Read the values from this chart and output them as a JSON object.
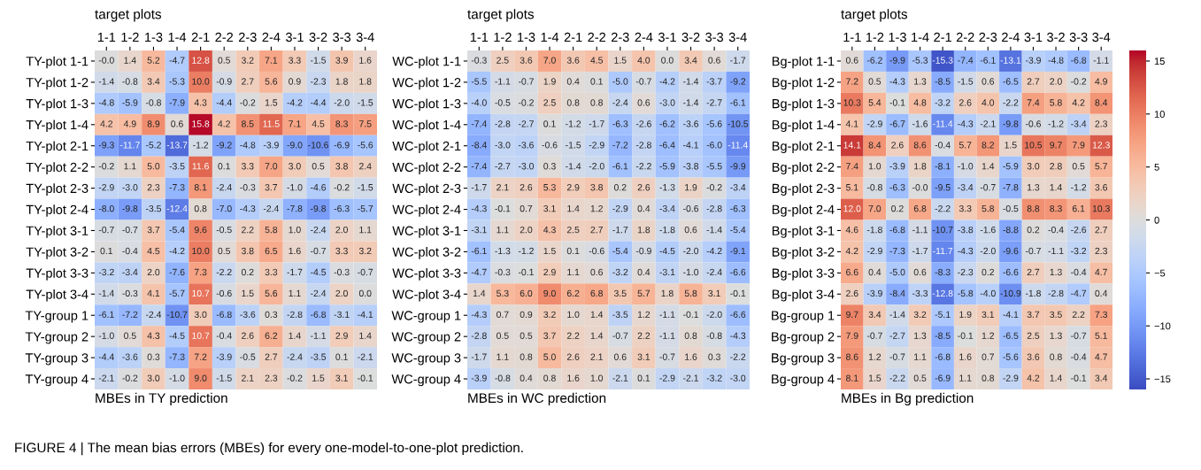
{
  "chart_data": [
    {
      "type": "heatmap",
      "xlabel": "target plots",
      "title": "MBEs in TY prediction",
      "categories": [
        "1-1",
        "1-2",
        "1-3",
        "1-4",
        "2-1",
        "2-2",
        "2-3",
        "2-4",
        "3-1",
        "3-2",
        "3-3",
        "3-4"
      ],
      "y_categories": [
        "TY-plot 1-1",
        "TY-plot 1-2",
        "TY-plot 1-3",
        "TY-plot 1-4",
        "TY-plot 2-1",
        "TY-plot 2-2",
        "TY-plot 2-3",
        "TY-plot 2-4",
        "TY-plot 3-1",
        "TY-plot 3-2",
        "TY-plot 3-3",
        "TY-plot 3-4",
        "TY-group 1",
        "TY-group 2",
        "TY-group 3",
        "TY-group 4"
      ],
      "cells": [
        [
          -0.0,
          1.4,
          5.2,
          -4.7,
          12.8,
          0.5,
          3.2,
          7.1,
          3.3,
          -1.5,
          3.9,
          1.6
        ],
        [
          -1.4,
          -0.8,
          3.4,
          -5.3,
          10.0,
          -0.9,
          2.7,
          5.6,
          0.9,
          -2.3,
          1.8,
          1.8
        ],
        [
          -4.8,
          -5.9,
          -0.8,
          -7.9,
          4.3,
          -4.4,
          -0.2,
          1.5,
          -4.2,
          -4.4,
          -2.0,
          -1.5
        ],
        [
          4.2,
          4.9,
          8.9,
          0.6,
          15.8,
          4.2,
          8.5,
          11.5,
          7.1,
          4.5,
          8.3,
          7.5
        ],
        [
          -9.3,
          -11.7,
          -5.2,
          -13.7,
          -1.2,
          -9.2,
          -4.8,
          -3.9,
          -9.0,
          -10.6,
          -6.9,
          -5.6
        ],
        [
          -0.2,
          1.1,
          5.0,
          -3.5,
          11.6,
          0.1,
          3.3,
          7.0,
          3.0,
          0.5,
          3.8,
          2.4
        ],
        [
          -2.9,
          -3.0,
          2.3,
          -7.3,
          8.1,
          -2.4,
          -0.3,
          3.7,
          -1.0,
          -4.6,
          -0.2,
          -1.5
        ],
        [
          -8.0,
          -9.8,
          -3.5,
          -12.4,
          0.8,
          -7.0,
          -4.3,
          -2.4,
          -7.8,
          -9.8,
          -6.3,
          -5.7
        ],
        [
          -0.7,
          -0.7,
          3.7,
          -5.4,
          9.6,
          -0.5,
          2.2,
          5.8,
          1.0,
          -2.4,
          2.0,
          1.1
        ],
        [
          0.1,
          -0.4,
          4.5,
          -4.2,
          10.0,
          0.5,
          3.8,
          6.5,
          1.6,
          -0.7,
          3.3,
          3.2
        ],
        [
          -3.2,
          -3.4,
          2.0,
          -7.6,
          7.3,
          -2.2,
          0.2,
          3.3,
          -1.7,
          -4.5,
          -0.3,
          -0.7
        ],
        [
          -1.4,
          -0.3,
          4.1,
          -5.7,
          10.7,
          -0.6,
          1.5,
          5.6,
          1.1,
          -2.4,
          2.0,
          0.0
        ],
        [
          -6.1,
          -7.2,
          -2.4,
          -10.7,
          3.0,
          -6.8,
          -3.6,
          0.3,
          -2.8,
          -6.8,
          -3.1,
          -4.1
        ],
        [
          -1.0,
          0.5,
          4.3,
          -4.5,
          10.7,
          -0.4,
          2.6,
          6.2,
          1.4,
          -1.1,
          2.9,
          1.4
        ],
        [
          -4.4,
          -3.6,
          0.3,
          -7.3,
          7.2,
          -3.9,
          -0.5,
          2.7,
          -2.4,
          -3.5,
          0.1,
          -2.1
        ],
        [
          -2.1,
          -0.2,
          3.0,
          -1.0,
          9.0,
          -1.5,
          2.1,
          2.3,
          -0.2,
          1.5,
          3.1,
          -0.1
        ]
      ],
      "cell_labels": [
        [
          "-0.0",
          "1.4",
          "5.2",
          "-4.7",
          "12.8",
          "0.5",
          "3.2",
          "7.1",
          "3.3",
          "-1.5",
          "3.9",
          "1.6"
        ],
        [
          "-1.4",
          "-0.8",
          "3.4",
          "-5.3",
          "10.0",
          "-0.9",
          "2.7",
          "5.6",
          "0.9",
          "-2.3",
          "1.8",
          "1.8"
        ],
        [
          "-4.8",
          "-5.9",
          "-0.8",
          "-7.9",
          "4.3",
          "-4.4",
          "-0.2",
          "1.5",
          "-4.2",
          "-4.4",
          "-2.0",
          "-1.5"
        ],
        [
          "4.2",
          "4.9",
          "8.9",
          "0.6",
          "15.8",
          "4.2",
          "8.5",
          "11.5",
          "7.1",
          "4.5",
          "8.3",
          "7.5"
        ],
        [
          "-9.3",
          "-11.7",
          "-5.2",
          "-13.7",
          "-1.2",
          "-9.2",
          "-4.8",
          "-3.9",
          "-9.0",
          "-10.6",
          "-6.9",
          "-5.6"
        ],
        [
          "-0.2",
          "1.1",
          "5.0",
          "-3.5",
          "11.6",
          "0.1",
          "3.3",
          "7.0",
          "3.0",
          "0.5",
          "3.8",
          "2.4"
        ],
        [
          "-2.9",
          "-3.0",
          "2.3",
          "-7.3",
          "8.1",
          "-2.4",
          "-0.3",
          "3.7",
          "-1.0",
          "-4.6",
          "-0.2",
          "-1.5"
        ],
        [
          "-8.0",
          "-9.8",
          "-3.5",
          "-12.4",
          "0.8",
          "-7.0",
          "-4.3",
          "-2.4",
          "-7.8",
          "-9.8",
          "-6.3",
          "-5.7"
        ],
        [
          "-0.7",
          "-0.7",
          "3.7",
          "-5.4",
          "9.6",
          "-0.5",
          "2.2",
          "5.8",
          "1.0",
          "-2.4",
          "2.0",
          "1.1"
        ],
        [
          "0.1",
          "-0.4",
          "4.5",
          "-4.2",
          "10.0",
          "0.5",
          "3.8",
          "6.5",
          "1.6",
          "-0.7",
          "3.3",
          "3.2"
        ],
        [
          "-3.2",
          "-3.4",
          "2.0",
          "-7.6",
          "7.3",
          "-2.2",
          "0.2",
          "3.3",
          "-1.7",
          "-4.5",
          "-0.3",
          "-0.7"
        ],
        [
          "-1.4",
          "-0.3",
          "4.1",
          "-5.7",
          "10.7",
          "-0.6",
          "1.5",
          "5.6",
          "1.1",
          "-2.4",
          "2.0",
          "0.0"
        ],
        [
          "-6.1",
          "-7.2",
          "-2.4",
          "-10.7",
          "3.0",
          "-6.8",
          "-3.6",
          "0.3",
          "-2.8",
          "-6.8",
          "-3.1",
          "-4.1"
        ],
        [
          "-1.0",
          "0.5",
          "4.3",
          "-4.5",
          "10.7",
          "-0.4",
          "2.6",
          "6.2",
          "1.4",
          "-1.1",
          "2.9",
          "1.4"
        ],
        [
          "-4.4",
          "-3.6",
          "0.3",
          "-7.3",
          "7.2",
          "-3.9",
          "-0.5",
          "2.7",
          "-2.4",
          "-3.5",
          "0.1",
          "-2.1"
        ],
        [
          "-2.1",
          "-0.2",
          "3.0",
          "-1.0",
          "9.0",
          "-1.5",
          "2.1",
          "2.3",
          "-0.2",
          "1.5",
          "3.1",
          "-0.1"
        ]
      ],
      "data_labels": true,
      "annotations": [
        "FIGURE 4 | The mean bias errors (MBEs) for every one-model-to-one-plot prediction."
      ]
    },
    {
      "type": "heatmap",
      "xlabel": "target plots",
      "title": "MBEs in WC prediction",
      "categories": [
        "1-1",
        "1-2",
        "1-3",
        "1-4",
        "2-1",
        "2-2",
        "2-3",
        "2-4",
        "3-1",
        "3-2",
        "3-3",
        "3-4"
      ],
      "y_categories": [
        "WC-plot 1-1",
        "WC-plot 1-2",
        "WC-plot 1-3",
        "WC-plot 1-4",
        "WC-plot 2-1",
        "WC-plot 2-2",
        "WC-plot 2-3",
        "WC-plot 2-4",
        "WC-plot 3-1",
        "WC-plot 3-2",
        "WC-plot 3-3",
        "WC-plot 3-4",
        "WC-group 1",
        "WC-group 2",
        "WC-group 3",
        "WC-group 4"
      ],
      "cells": [
        [
          -0.3,
          2.5,
          3.6,
          7.0,
          3.6,
          4.5,
          1.5,
          4.0,
          0.0,
          3.4,
          0.6,
          -1.7
        ],
        [
          -5.5,
          -1.1,
          -0.7,
          1.9,
          0.4,
          0.1,
          -5.0,
          -0.7,
          -4.2,
          -1.4,
          -3.7,
          -9.2
        ],
        [
          -4.0,
          -0.5,
          -0.2,
          2.5,
          0.8,
          0.8,
          -2.4,
          0.6,
          -3.0,
          -1.4,
          -2.7,
          -6.1
        ],
        [
          -7.4,
          -2.8,
          -2.7,
          0.1,
          -1.2,
          -1.7,
          -6.3,
          -2.6,
          -6.2,
          -3.6,
          -5.6,
          -10.5
        ],
        [
          -8.4,
          -3.0,
          -3.6,
          -0.6,
          -1.5,
          -2.9,
          -7.2,
          -2.8,
          -6.4,
          -4.1,
          -6.0,
          -11.4
        ],
        [
          -7.4,
          -2.7,
          -3.0,
          0.3,
          -1.4,
          -2.0,
          -6.1,
          -2.2,
          -5.9,
          -3.8,
          -5.5,
          -9.9
        ],
        [
          -1.7,
          2.1,
          2.6,
          5.3,
          2.9,
          3.8,
          0.2,
          2.6,
          -1.3,
          1.9,
          -0.2,
          -3.4
        ],
        [
          -4.3,
          -0.1,
          0.7,
          3.1,
          1.4,
          1.2,
          -2.9,
          0.4,
          -3.4,
          -0.6,
          -2.8,
          -6.3
        ],
        [
          -3.1,
          1.1,
          2.0,
          4.3,
          2.5,
          2.7,
          -1.7,
          1.8,
          -1.8,
          0.6,
          -1.4,
          -5.4
        ],
        [
          -6.1,
          -1.3,
          -1.2,
          1.5,
          0.1,
          -0.6,
          -5.4,
          -0.9,
          -4.5,
          -2.0,
          -4.2,
          -9.1
        ],
        [
          -4.7,
          -0.3,
          -0.1,
          2.9,
          1.1,
          0.6,
          -3.2,
          0.4,
          -3.1,
          -1.0,
          -2.4,
          -6.6
        ],
        [
          1.4,
          5.3,
          6.0,
          9.0,
          6.2,
          6.8,
          3.5,
          5.7,
          1.8,
          5.8,
          3.1,
          -0.1
        ],
        [
          -4.3,
          0.7,
          0.9,
          3.2,
          1.0,
          1.4,
          -3.5,
          1.2,
          -1.1,
          -0.1,
          -2.0,
          -6.6
        ],
        [
          -2.8,
          0.5,
          0.5,
          3.7,
          2.2,
          1.4,
          -0.7,
          2.2,
          -1.1,
          0.8,
          -0.8,
          -4.3
        ],
        [
          -1.7,
          1.1,
          0.8,
          5.0,
          2.6,
          2.1,
          0.6,
          3.1,
          -0.7,
          1.6,
          0.3,
          -2.2
        ],
        [
          -3.9,
          -0.8,
          0.4,
          0.8,
          1.6,
          1.0,
          -2.1,
          0.1,
          -2.9,
          -2.1,
          -3.2,
          -3.0
        ]
      ],
      "cell_labels": [
        [
          "-0.3",
          "2.5",
          "3.6",
          "7.0",
          "3.6",
          "4.5",
          "1.5",
          "4.0",
          "0.0",
          "3.4",
          "0.6",
          "-1.7"
        ],
        [
          "-5.5",
          "-1.1",
          "-0.7",
          "1.9",
          "0.4",
          "0.1",
          "-5.0",
          "-0.7",
          "-4.2",
          "-1.4",
          "-3.7",
          "-9.2"
        ],
        [
          "-4.0",
          "-0.5",
          "-0.2",
          "2.5",
          "0.8",
          "0.8",
          "-2.4",
          "0.6",
          "-3.0",
          "-1.4",
          "-2.7",
          "-6.1"
        ],
        [
          "-7.4",
          "-2.8",
          "-2.7",
          "0.1",
          "-1.2",
          "-1.7",
          "-6.3",
          "-2.6",
          "-6.2",
          "-3.6",
          "-5.6",
          "-10.5"
        ],
        [
          "-8.4",
          "-3.0",
          "-3.6",
          "-0.6",
          "-1.5",
          "-2.9",
          "-7.2",
          "-2.8",
          "-6.4",
          "-4.1",
          "-6.0",
          "-11.4"
        ],
        [
          "-7.4",
          "-2.7",
          "-3.0",
          "0.3",
          "-1.4",
          "-2.0",
          "-6.1",
          "-2.2",
          "-5.9",
          "-3.8",
          "-5.5",
          "-9.9"
        ],
        [
          "-1.7",
          "2.1",
          "2.6",
          "5.3",
          "2.9",
          "3.8",
          "0.2",
          "2.6",
          "-1.3",
          "1.9",
          "-0.2",
          "-3.4"
        ],
        [
          "-4.3",
          "-0.1",
          "0.7",
          "3.1",
          "1.4",
          "1.2",
          "-2.9",
          "0.4",
          "-3.4",
          "-0.6",
          "-2.8",
          "-6.3"
        ],
        [
          "-3.1",
          "1.1",
          "2.0",
          "4.3",
          "2.5",
          "2.7",
          "-1.7",
          "1.8",
          "-1.8",
          "0.6",
          "-1.4",
          "-5.4"
        ],
        [
          "-6.1",
          "-1.3",
          "-1.2",
          "1.5",
          "0.1",
          "-0.6",
          "-5.4",
          "-0.9",
          "-4.5",
          "-2.0",
          "-4.2",
          "-9.1"
        ],
        [
          "-4.7",
          "-0.3",
          "-0.1",
          "2.9",
          "1.1",
          "0.6",
          "-3.2",
          "0.4",
          "-3.1",
          "-1.0",
          "-2.4",
          "-6.6"
        ],
        [
          "1.4",
          "5.3",
          "6.0",
          "9.0",
          "6.2",
          "6.8",
          "3.5",
          "5.7",
          "1.8",
          "5.8",
          "3.1",
          "-0.1"
        ],
        [
          "-4.3",
          "0.7",
          "0.9",
          "3.2",
          "1.0",
          "1.4",
          "-3.5",
          "1.2",
          "-1.1",
          "-0.1",
          "-2.0",
          "-6.6"
        ],
        [
          "-2.8",
          "0.5",
          "0.5",
          "3.7",
          "2.2",
          "1.4",
          "-0.7",
          "2.2",
          "-1.1",
          "0.8",
          "-0.8",
          "-4.3"
        ],
        [
          "-1.7",
          "1.1",
          "0.8",
          "5.0",
          "2.6",
          "2.1",
          "0.6",
          "3.1",
          "-0.7",
          "1.6",
          "0.3",
          "-2.2"
        ],
        [
          "-3.9",
          "-0.8",
          "0.4",
          "0.8",
          "1.6",
          "1.0",
          "-2.1",
          "0.1",
          "-2.9",
          "-2.1",
          "-3.2",
          "-3.0"
        ]
      ],
      "data_labels": true
    },
    {
      "type": "heatmap",
      "xlabel": "target plots",
      "title": "MBEs in Bg prediction",
      "categories": [
        "1-1",
        "1-2",
        "1-3",
        "1-4",
        "2-1",
        "2-2",
        "2-3",
        "2-4",
        "3-1",
        "3-2",
        "3-3",
        "3-4"
      ],
      "y_categories": [
        "Bg-plot 1-1",
        "Bg-plot 1-2",
        "Bg-plot 1-3",
        "Bg-plot 1-4",
        "Bg-plot 2-1",
        "Bg-plot 2-2",
        "Bg-plot 2-3",
        "Bg-plot 2-4",
        "Bg-plot 3-1",
        "Bg-plot 3-2",
        "Bg-plot 3-3",
        "Bg-plot 3-4",
        "Bg-group 1",
        "Bg-group 2",
        "Bg-group 3",
        "Bg-group 4"
      ],
      "cells": [
        [
          0.6,
          -6.2,
          -9.9,
          -5.3,
          -15.3,
          -7.4,
          -6.1,
          -13.1,
          -3.9,
          -4.8,
          -6.8,
          -1.1
        ],
        [
          7.2,
          0.5,
          -4.3,
          1.3,
          -8.5,
          -1.5,
          0.6,
          -6.5,
          2.7,
          2.0,
          -0.2,
          4.9
        ],
        [
          10.3,
          5.4,
          -0.1,
          4.8,
          -3.2,
          2.6,
          4.0,
          -2.2,
          7.4,
          5.8,
          4.2,
          8.4
        ],
        [
          4.1,
          -2.9,
          -6.7,
          -1.6,
          -11.4,
          -4.3,
          -2.1,
          -9.8,
          -0.6,
          -1.2,
          -3.4,
          2.3
        ],
        [
          14.1,
          8.4,
          2.6,
          8.6,
          -0.4,
          5.7,
          8.2,
          1.5,
          10.5,
          9.7,
          7.9,
          12.3
        ],
        [
          7.4,
          1.0,
          -3.9,
          1.8,
          -8.1,
          -1.0,
          1.4,
          -5.9,
          3.0,
          2.8,
          0.5,
          5.7
        ],
        [
          5.1,
          -0.8,
          -6.3,
          -0.0,
          -9.5,
          -3.4,
          -0.7,
          -7.8,
          1.3,
          1.4,
          -1.2,
          3.6
        ],
        [
          12.0,
          7.0,
          0.2,
          6.8,
          -2.2,
          3.3,
          5.8,
          -0.5,
          8.8,
          8.3,
          6.1,
          10.3
        ],
        [
          4.6,
          -1.8,
          -6.8,
          -1.1,
          -10.7,
          -3.8,
          -1.6,
          -8.8,
          0.2,
          -0.4,
          -2.6,
          2.7
        ],
        [
          4.2,
          -2.9,
          -7.3,
          -1.7,
          -11.7,
          -4.3,
          -2.0,
          -9.6,
          -0.7,
          -1.1,
          -3.2,
          2.3
        ],
        [
          6.6,
          0.4,
          -5.0,
          0.6,
          -8.3,
          -2.3,
          0.2,
          -6.6,
          2.7,
          1.3,
          -0.4,
          4.7
        ],
        [
          2.6,
          -3.9,
          -8.4,
          -3.3,
          -12.8,
          -5.8,
          -4.0,
          -10.9,
          -1.8,
          -2.8,
          -4.7,
          0.4
        ],
        [
          9.7,
          3.4,
          -1.4,
          3.2,
          -5.1,
          1.9,
          3.1,
          -4.1,
          3.7,
          3.5,
          2.2,
          7.3
        ],
        [
          7.9,
          -0.7,
          -2.7,
          1.3,
          -8.5,
          -0.1,
          1.2,
          -6.5,
          2.5,
          1.3,
          -0.7,
          5.1
        ],
        [
          8.6,
          1.2,
          -0.7,
          1.1,
          -6.8,
          1.6,
          0.7,
          -5.6,
          3.6,
          0.8,
          -0.4,
          4.7
        ],
        [
          8.1,
          1.5,
          -2.2,
          0.5,
          -6.9,
          1.1,
          0.8,
          -2.9,
          4.2,
          1.4,
          -0.1,
          3.4
        ]
      ],
      "cell_labels": [
        [
          "0.6",
          "-6.2",
          "-9.9",
          "-5.3",
          "-15.3",
          "-7.4",
          "-6.1",
          "-13.1",
          "-3.9",
          "-4.8",
          "-6.8",
          "-1.1"
        ],
        [
          "7.2",
          "0.5",
          "-4.3",
          "1.3",
          "-8.5",
          "-1.5",
          "0.6",
          "-6.5",
          "2.7",
          "2.0",
          "-0.2",
          "4.9"
        ],
        [
          "10.3",
          "5.4",
          "-0.1",
          "4.8",
          "-3.2",
          "2.6",
          "4.0",
          "-2.2",
          "7.4",
          "5.8",
          "4.2",
          "8.4"
        ],
        [
          "4.1",
          "-2.9",
          "-6.7",
          "-1.6",
          "-11.4",
          "-4.3",
          "-2.1",
          "-9.8",
          "-0.6",
          "-1.2",
          "-3.4",
          "2.3"
        ],
        [
          "14.1",
          "8.4",
          "2.6",
          "8.6",
          "-0.4",
          "5.7",
          "8.2",
          "1.5",
          "10.5",
          "9.7",
          "7.9",
          "12.3"
        ],
        [
          "7.4",
          "1.0",
          "-3.9",
          "1.8",
          "-8.1",
          "-1.0",
          "1.4",
          "-5.9",
          "3.0",
          "2.8",
          "0.5",
          "5.7"
        ],
        [
          "5.1",
          "-0.8",
          "-6.3",
          "-0.0",
          "-9.5",
          "-3.4",
          "-0.7",
          "-7.8",
          "1.3",
          "1.4",
          "-1.2",
          "3.6"
        ],
        [
          "12.0",
          "7.0",
          "0.2",
          "6.8",
          "-2.2",
          "3.3",
          "5.8",
          "-0.5",
          "8.8",
          "8.3",
          "6.1",
          "10.3"
        ],
        [
          "4.6",
          "-1.8",
          "-6.8",
          "-1.1",
          "-10.7",
          "-3.8",
          "-1.6",
          "-8.8",
          "0.2",
          "-0.4",
          "-2.6",
          "2.7"
        ],
        [
          "4.2",
          "-2.9",
          "-7.3",
          "-1.7",
          "-11.7",
          "-4.3",
          "-2.0",
          "-9.6",
          "-0.7",
          "-1.1",
          "-3.2",
          "2.3"
        ],
        [
          "6.6",
          "0.4",
          "-5.0",
          "0.6",
          "-8.3",
          "-2.3",
          "0.2",
          "-6.6",
          "2.7",
          "1.3",
          "-0.4",
          "4.7"
        ],
        [
          "2.6",
          "-3.9",
          "-8.4",
          "-3.3",
          "-12.8",
          "-5.8",
          "-4.0",
          "-10.9",
          "-1.8",
          "-2.8",
          "-4.7",
          "0.4"
        ],
        [
          "9.7",
          "3.4",
          "-1.4",
          "3.2",
          "-5.1",
          "1.9",
          "3.1",
          "-4.1",
          "3.7",
          "3.5",
          "2.2",
          "7.3"
        ],
        [
          "7.9",
          "-0.7",
          "-2.7",
          "1.3",
          "-8.5",
          "-0.1",
          "1.2",
          "-6.5",
          "2.5",
          "1.3",
          "-0.7",
          "5.1"
        ],
        [
          "8.6",
          "1.2",
          "-0.7",
          "1.1",
          "-6.8",
          "1.6",
          "0.7",
          "-5.6",
          "3.6",
          "0.8",
          "-0.4",
          "4.7"
        ],
        [
          "8.1",
          "1.5",
          "-2.2",
          "0.5",
          "-6.9",
          "1.1",
          "0.8",
          "-2.9",
          "4.2",
          "1.4",
          "-0.1",
          "3.4"
        ]
      ],
      "clim": [
        -16,
        16
      ],
      "cticks": [
        -15,
        -10,
        -5,
        0,
        5,
        10,
        15
      ],
      "data_labels": true
    }
  ]
}
